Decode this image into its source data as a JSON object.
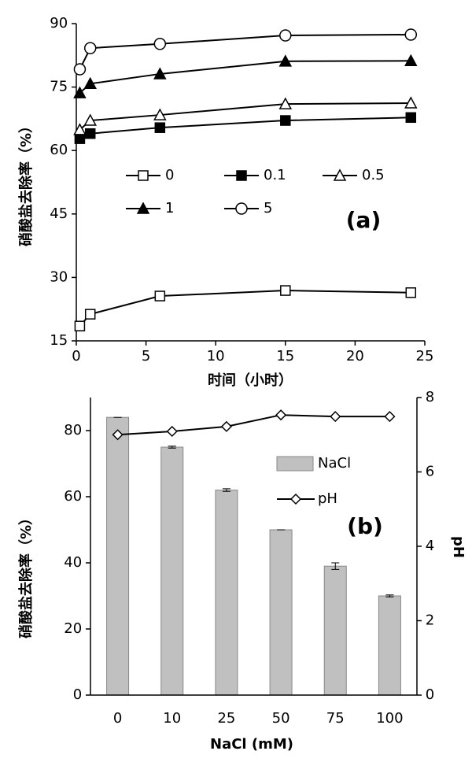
{
  "chart_data": [
    {
      "type": "line",
      "annotation": "(a)",
      "x_label": "时间（小时）",
      "y_label": "硝酸盐去除率（%）",
      "xlim": [
        0,
        25
      ],
      "xticks": [
        0,
        5,
        10,
        15,
        20,
        25
      ],
      "ylim": [
        15,
        90
      ],
      "yticks": [
        15,
        30,
        45,
        60,
        75,
        90
      ],
      "x": [
        0.25,
        1,
        6,
        15,
        24
      ],
      "series": [
        {
          "name": "0",
          "color": "#000000",
          "marker": "open-square",
          "values": [
            18.5,
            21.3,
            25.6,
            26.9,
            26.4
          ]
        },
        {
          "name": "0.1",
          "color": "#000000",
          "marker": "filled-square",
          "values": [
            62.8,
            64,
            65.4,
            67.1,
            67.8
          ]
        },
        {
          "name": "0.5",
          "color": "#000000",
          "marker": "open-triangle",
          "values": [
            64.9,
            67.1,
            68.4,
            71,
            71.2
          ]
        },
        {
          "name": "1",
          "color": "#000000",
          "marker": "filled-triangle",
          "values": [
            73.6,
            75.8,
            78.1,
            81.1,
            81.2
          ]
        },
        {
          "name": "5",
          "color": "#000000",
          "marker": "open-circle",
          "values": [
            79.2,
            84.2,
            85.2,
            87.2,
            87.4
          ]
        }
      ]
    },
    {
      "type": "bar",
      "annotation": "(b)",
      "x_label": "NaCl (mM)",
      "y_label": "硝酸盐去除率（%）",
      "y2_label": "pH",
      "categories": [
        "0",
        "10",
        "25",
        "50",
        "75",
        "100"
      ],
      "ylim": [
        0,
        90
      ],
      "yticks": [
        0,
        20,
        40,
        60,
        80
      ],
      "y2lim": [
        0,
        8
      ],
      "y2ticks": [
        0,
        2,
        4,
        6,
        8
      ],
      "series": [
        {
          "name": "NaCl",
          "color": "#c0c0c0",
          "values": [
            84,
            75,
            62,
            50,
            39,
            30
          ],
          "errors": [
            0,
            0.3,
            0.4,
            0,
            1,
            0.3
          ]
        },
        {
          "name": "pH",
          "color": "#000000",
          "axis": "y2",
          "marker": "open-diamond",
          "values": [
            7.0,
            7.09,
            7.22,
            7.53,
            7.49,
            7.49
          ]
        }
      ]
    }
  ]
}
